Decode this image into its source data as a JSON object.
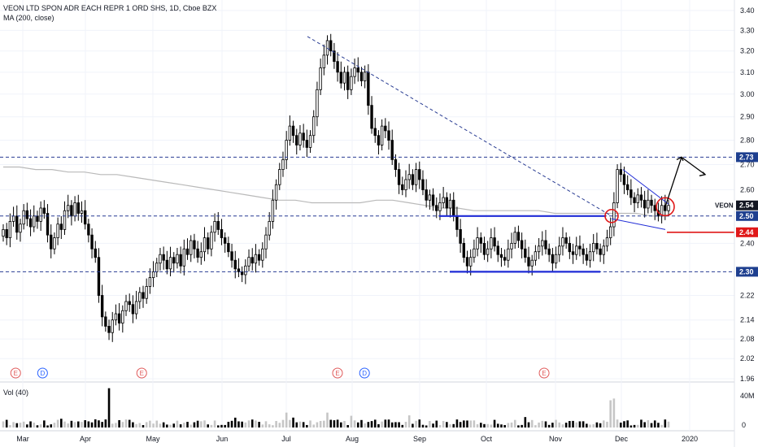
{
  "header": {
    "title": "VEON LTD SPON ADR EACH REPR 1 ORD SHS, 1D, Cboe BZX",
    "indicator": "MA (200, close)"
  },
  "volume_panel": {
    "label": "Vol (40)",
    "axis_ticks": [
      "40M",
      "0"
    ]
  },
  "colors": {
    "up": "#ffffff",
    "down": "#000000",
    "wick": "#000000",
    "ma": "#b9b9b9",
    "blue": "#1f2bd6",
    "red": "#e01818",
    "dash": "#2a3d93",
    "price_tag": "#131722",
    "axis_text": "#131722",
    "event_earnings": "#e05a5a",
    "event_dividend": "#2962ff"
  },
  "price_badges": [
    {
      "text": "2.73",
      "value": 2.73,
      "bg": "#1e3f8f"
    },
    {
      "text": "2.54",
      "value": 2.54,
      "bg": "#131722",
      "label": "VEON"
    },
    {
      "text": "2.50",
      "value": 2.5,
      "bg": "#1e3f8f"
    },
    {
      "text": "2.44",
      "value": 2.44,
      "bg": "#e01818"
    },
    {
      "text": "2.30",
      "value": 2.3,
      "bg": "#1e3f8f"
    }
  ],
  "events": [
    {
      "text": "E",
      "kind": "earnings",
      "month_pos": 0.12
    },
    {
      "text": "D",
      "kind": "dividend",
      "month_pos": 0.55
    },
    {
      "text": "E",
      "kind": "earnings",
      "month_pos": 2.05
    },
    {
      "text": "E",
      "kind": "earnings",
      "month_pos": 5.0
    },
    {
      "text": "D",
      "kind": "dividend",
      "month_pos": 5.4
    },
    {
      "text": "E",
      "kind": "earnings",
      "month_pos": 8.05
    }
  ],
  "chart_data": {
    "type": "candlestick",
    "title": "VEON LTD SPON ADR EACH REPR 1 ORD SHS, 1D, Cboe BZX",
    "x_ticks": [
      "Mar",
      "Apr",
      "May",
      "Jun",
      "Jul",
      "Aug",
      "Sep",
      "Oct",
      "Nov",
      "Dec",
      "2020"
    ],
    "y_ticks": [
      "1.96",
      "2.02",
      "2.08",
      "2.14",
      "2.22",
      "2.30",
      "2.40",
      "2.50",
      "2.60",
      "2.70",
      "2.80",
      "2.90",
      "3.00",
      "3.10",
      "3.20",
      "3.30",
      "3.40"
    ],
    "y_scale": "log",
    "ylim": [
      1.96,
      3.42
    ],
    "candles_close": [
      2.45,
      2.42,
      2.48,
      2.5,
      2.44,
      2.47,
      2.52,
      2.49,
      2.46,
      2.5,
      2.48,
      2.53,
      2.51,
      2.43,
      2.38,
      2.42,
      2.47,
      2.45,
      2.52,
      2.54,
      2.5,
      2.55,
      2.51,
      2.52,
      2.47,
      2.43,
      2.38,
      2.35,
      2.22,
      2.15,
      2.12,
      2.1,
      2.14,
      2.16,
      2.13,
      2.17,
      2.2,
      2.19,
      2.16,
      2.2,
      2.23,
      2.21,
      2.25,
      2.28,
      2.3,
      2.33,
      2.36,
      2.34,
      2.31,
      2.35,
      2.33,
      2.36,
      2.32,
      2.38,
      2.36,
      2.41,
      2.38,
      2.35,
      2.37,
      2.42,
      2.38,
      2.44,
      2.48,
      2.45,
      2.42,
      2.4,
      2.37,
      2.34,
      2.31,
      2.3,
      2.29,
      2.32,
      2.35,
      2.33,
      2.36,
      2.34,
      2.38,
      2.43,
      2.48,
      2.56,
      2.62,
      2.68,
      2.72,
      2.8,
      2.86,
      2.82,
      2.78,
      2.83,
      2.8,
      2.77,
      2.82,
      2.9,
      3.02,
      3.12,
      3.18,
      3.25,
      3.2,
      3.15,
      3.1,
      3.05,
      3.1,
      3.02,
      3.08,
      3.12,
      3.1,
      3.06,
      3.1,
      2.95,
      2.85,
      2.82,
      2.78,
      2.86,
      2.84,
      2.8,
      2.72,
      2.68,
      2.62,
      2.6,
      2.64,
      2.66,
      2.62,
      2.68,
      2.64,
      2.6,
      2.56,
      2.58,
      2.54,
      2.52,
      2.55,
      2.57,
      2.53,
      2.56,
      2.5,
      2.45,
      2.4,
      2.35,
      2.32,
      2.35,
      2.38,
      2.42,
      2.4,
      2.36,
      2.38,
      2.42,
      2.39,
      2.36,
      2.35,
      2.34,
      2.38,
      2.4,
      2.44,
      2.41,
      2.38,
      2.35,
      2.32,
      2.34,
      2.37,
      2.39,
      2.41,
      2.38,
      2.36,
      2.33,
      2.36,
      2.39,
      2.42,
      2.4,
      2.37,
      2.36,
      2.39,
      2.38,
      2.36,
      2.34,
      2.37,
      2.4,
      2.38,
      2.36,
      2.39,
      2.42,
      2.46,
      2.55,
      2.68,
      2.66,
      2.62,
      2.6,
      2.57,
      2.55,
      2.58,
      2.56,
      2.53,
      2.56,
      2.54,
      2.52,
      2.5,
      2.54,
      2.52,
      2.54
    ],
    "ma_200": [
      2.69,
      2.69,
      2.68,
      2.68,
      2.67,
      2.67,
      2.66,
      2.66,
      2.65,
      2.64,
      2.63,
      2.62,
      2.61,
      2.6,
      2.59,
      2.58,
      2.57,
      2.56,
      2.56,
      2.55,
      2.55,
      2.55,
      2.55,
      2.56,
      2.56,
      2.55,
      2.54,
      2.53,
      2.53,
      2.52,
      2.52,
      2.52,
      2.52,
      2.52,
      2.51,
      2.51,
      2.51,
      2.51,
      2.51,
      2.51,
      2.5,
      2.5
    ],
    "volume_max": 60,
    "volume_unit": "M",
    "annotations": [
      {
        "type": "hline-dashed",
        "y": 2.73
      },
      {
        "type": "hline-dashed",
        "y": 2.5
      },
      {
        "type": "hline-dashed",
        "y": 2.3
      },
      {
        "type": "support-solid",
        "y": 2.5,
        "color": "blue"
      },
      {
        "type": "support-solid",
        "y": 2.3,
        "color": "blue"
      },
      {
        "type": "hline-solid",
        "y": 2.44,
        "color": "red"
      },
      {
        "type": "trendline-dashed",
        "from_y": 3.27,
        "to_y": 2.5
      },
      {
        "type": "wedge",
        "color": "blue"
      },
      {
        "type": "circle",
        "y": 2.5,
        "color": "red"
      },
      {
        "type": "circle",
        "y": 2.535,
        "color": "red"
      },
      {
        "type": "arrow-path",
        "to_y": 2.73
      }
    ]
  }
}
